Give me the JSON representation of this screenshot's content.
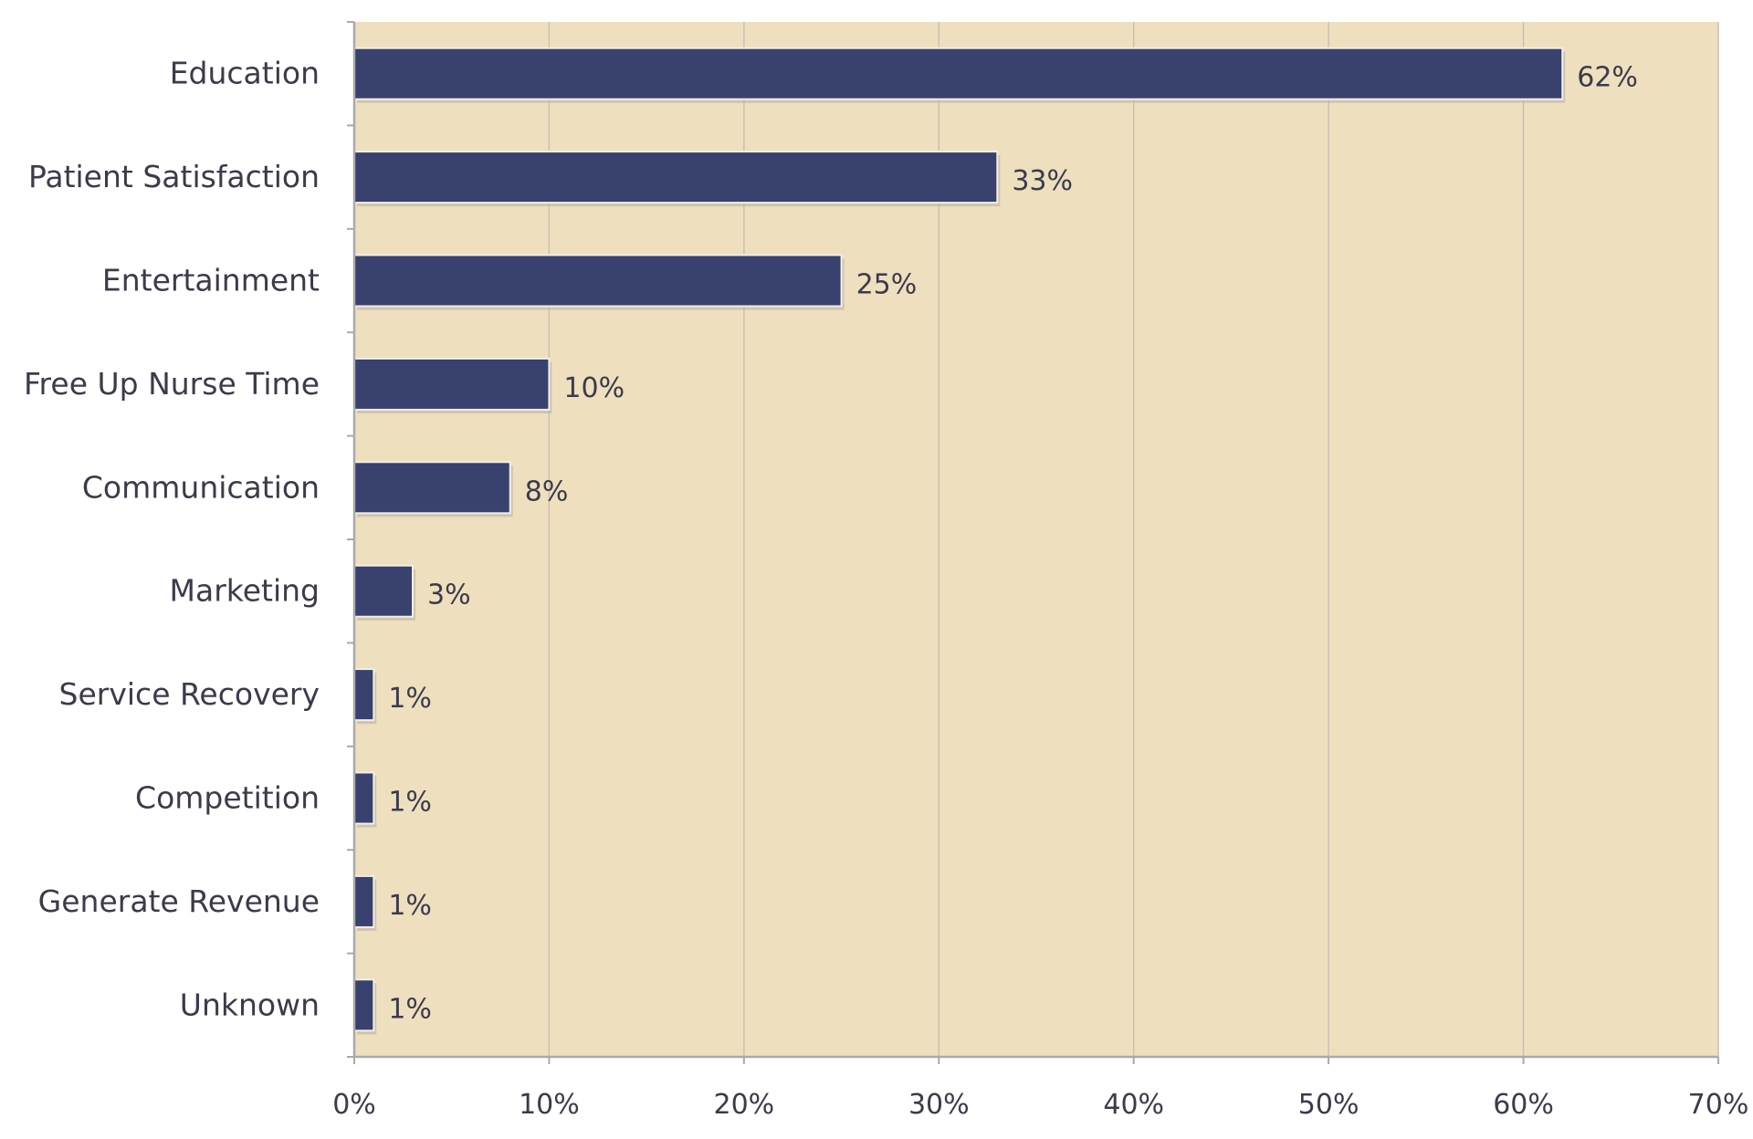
{
  "chart_data": {
    "type": "bar",
    "orientation": "horizontal",
    "categories": [
      "Education",
      "Patient Satisfaction",
      "Entertainment",
      "Free Up Nurse Time",
      "Communication",
      "Marketing",
      "Service Recovery",
      "Competition",
      "Generate Revenue",
      "Unknown"
    ],
    "values": [
      62,
      33,
      25,
      10,
      8,
      3,
      1,
      1,
      1,
      1
    ],
    "data_labels": [
      "62%",
      "33%",
      "25%",
      "10%",
      "8%",
      "3%",
      "1%",
      "1%",
      "1%",
      "1%"
    ],
    "title": "",
    "xlabel": "",
    "ylabel": "",
    "xlim": [
      0,
      70
    ],
    "x_ticks": [
      "0%",
      "10%",
      "20%",
      "30%",
      "40%",
      "50%",
      "60%",
      "70%"
    ],
    "grid": "vertical",
    "legend": "none",
    "colors": {
      "bar": "#39416f",
      "plot_background": "#eedfbf",
      "grid": "#c8c2b4",
      "axis": "#a9a9a9"
    }
  }
}
